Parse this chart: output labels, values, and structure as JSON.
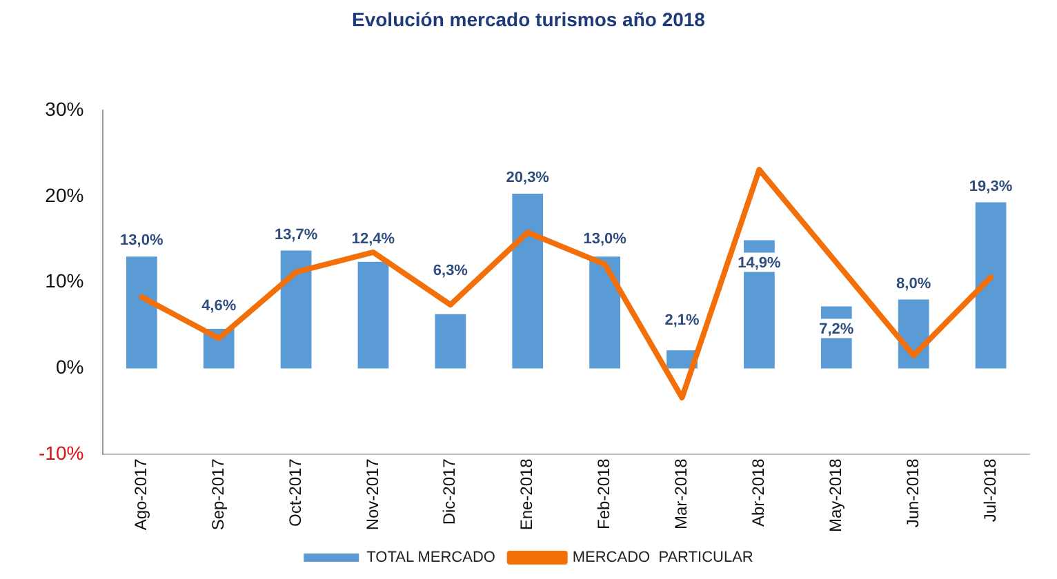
{
  "chart_data": {
    "type": "bar",
    "title": "Evolución mercado turismos año 2018",
    "categories": [
      "Ago-2017",
      "Sep-2017",
      "Oct-2017",
      "Nov-2017",
      "Dic-2017",
      "Ene-2018",
      "Feb-2018",
      "Mar-2018",
      "Abr-2018",
      "May-2018",
      "Jun-2018",
      "Jul-2018"
    ],
    "series": [
      {
        "name": "TOTAL MERCADO",
        "color": "#5b9bd5",
        "values": [
          13.0,
          4.6,
          13.7,
          12.4,
          6.3,
          20.3,
          13.0,
          2.1,
          14.9,
          7.2,
          8.0,
          19.3
        ],
        "value_labels": [
          "13,0%",
          "4,6%",
          "13,7%",
          "12,4%",
          "6,3%",
          "20,3%",
          "13,0%",
          "2,1%",
          "14,9%",
          "7,2%",
          "8,0%",
          "19,3%"
        ]
      },
      {
        "name": "MERCADO  PARTICULAR",
        "type": "line",
        "color": "#f26f0a",
        "values": [
          8.3,
          3.5,
          11.2,
          13.5,
          7.4,
          15.8,
          12.1,
          -3.4,
          23.1,
          12.3,
          1.5,
          10.6
        ]
      }
    ],
    "ylim": [
      -10,
      30
    ],
    "yticks": [
      {
        "value": -10,
        "label": "-10%"
      },
      {
        "value": 0,
        "label": "0%"
      },
      {
        "value": 10,
        "label": "10%"
      },
      {
        "value": 20,
        "label": "20%"
      },
      {
        "value": 30,
        "label": "30%"
      }
    ],
    "grid": false,
    "legend": "bottom",
    "marker": "none",
    "line_style": "solid"
  }
}
